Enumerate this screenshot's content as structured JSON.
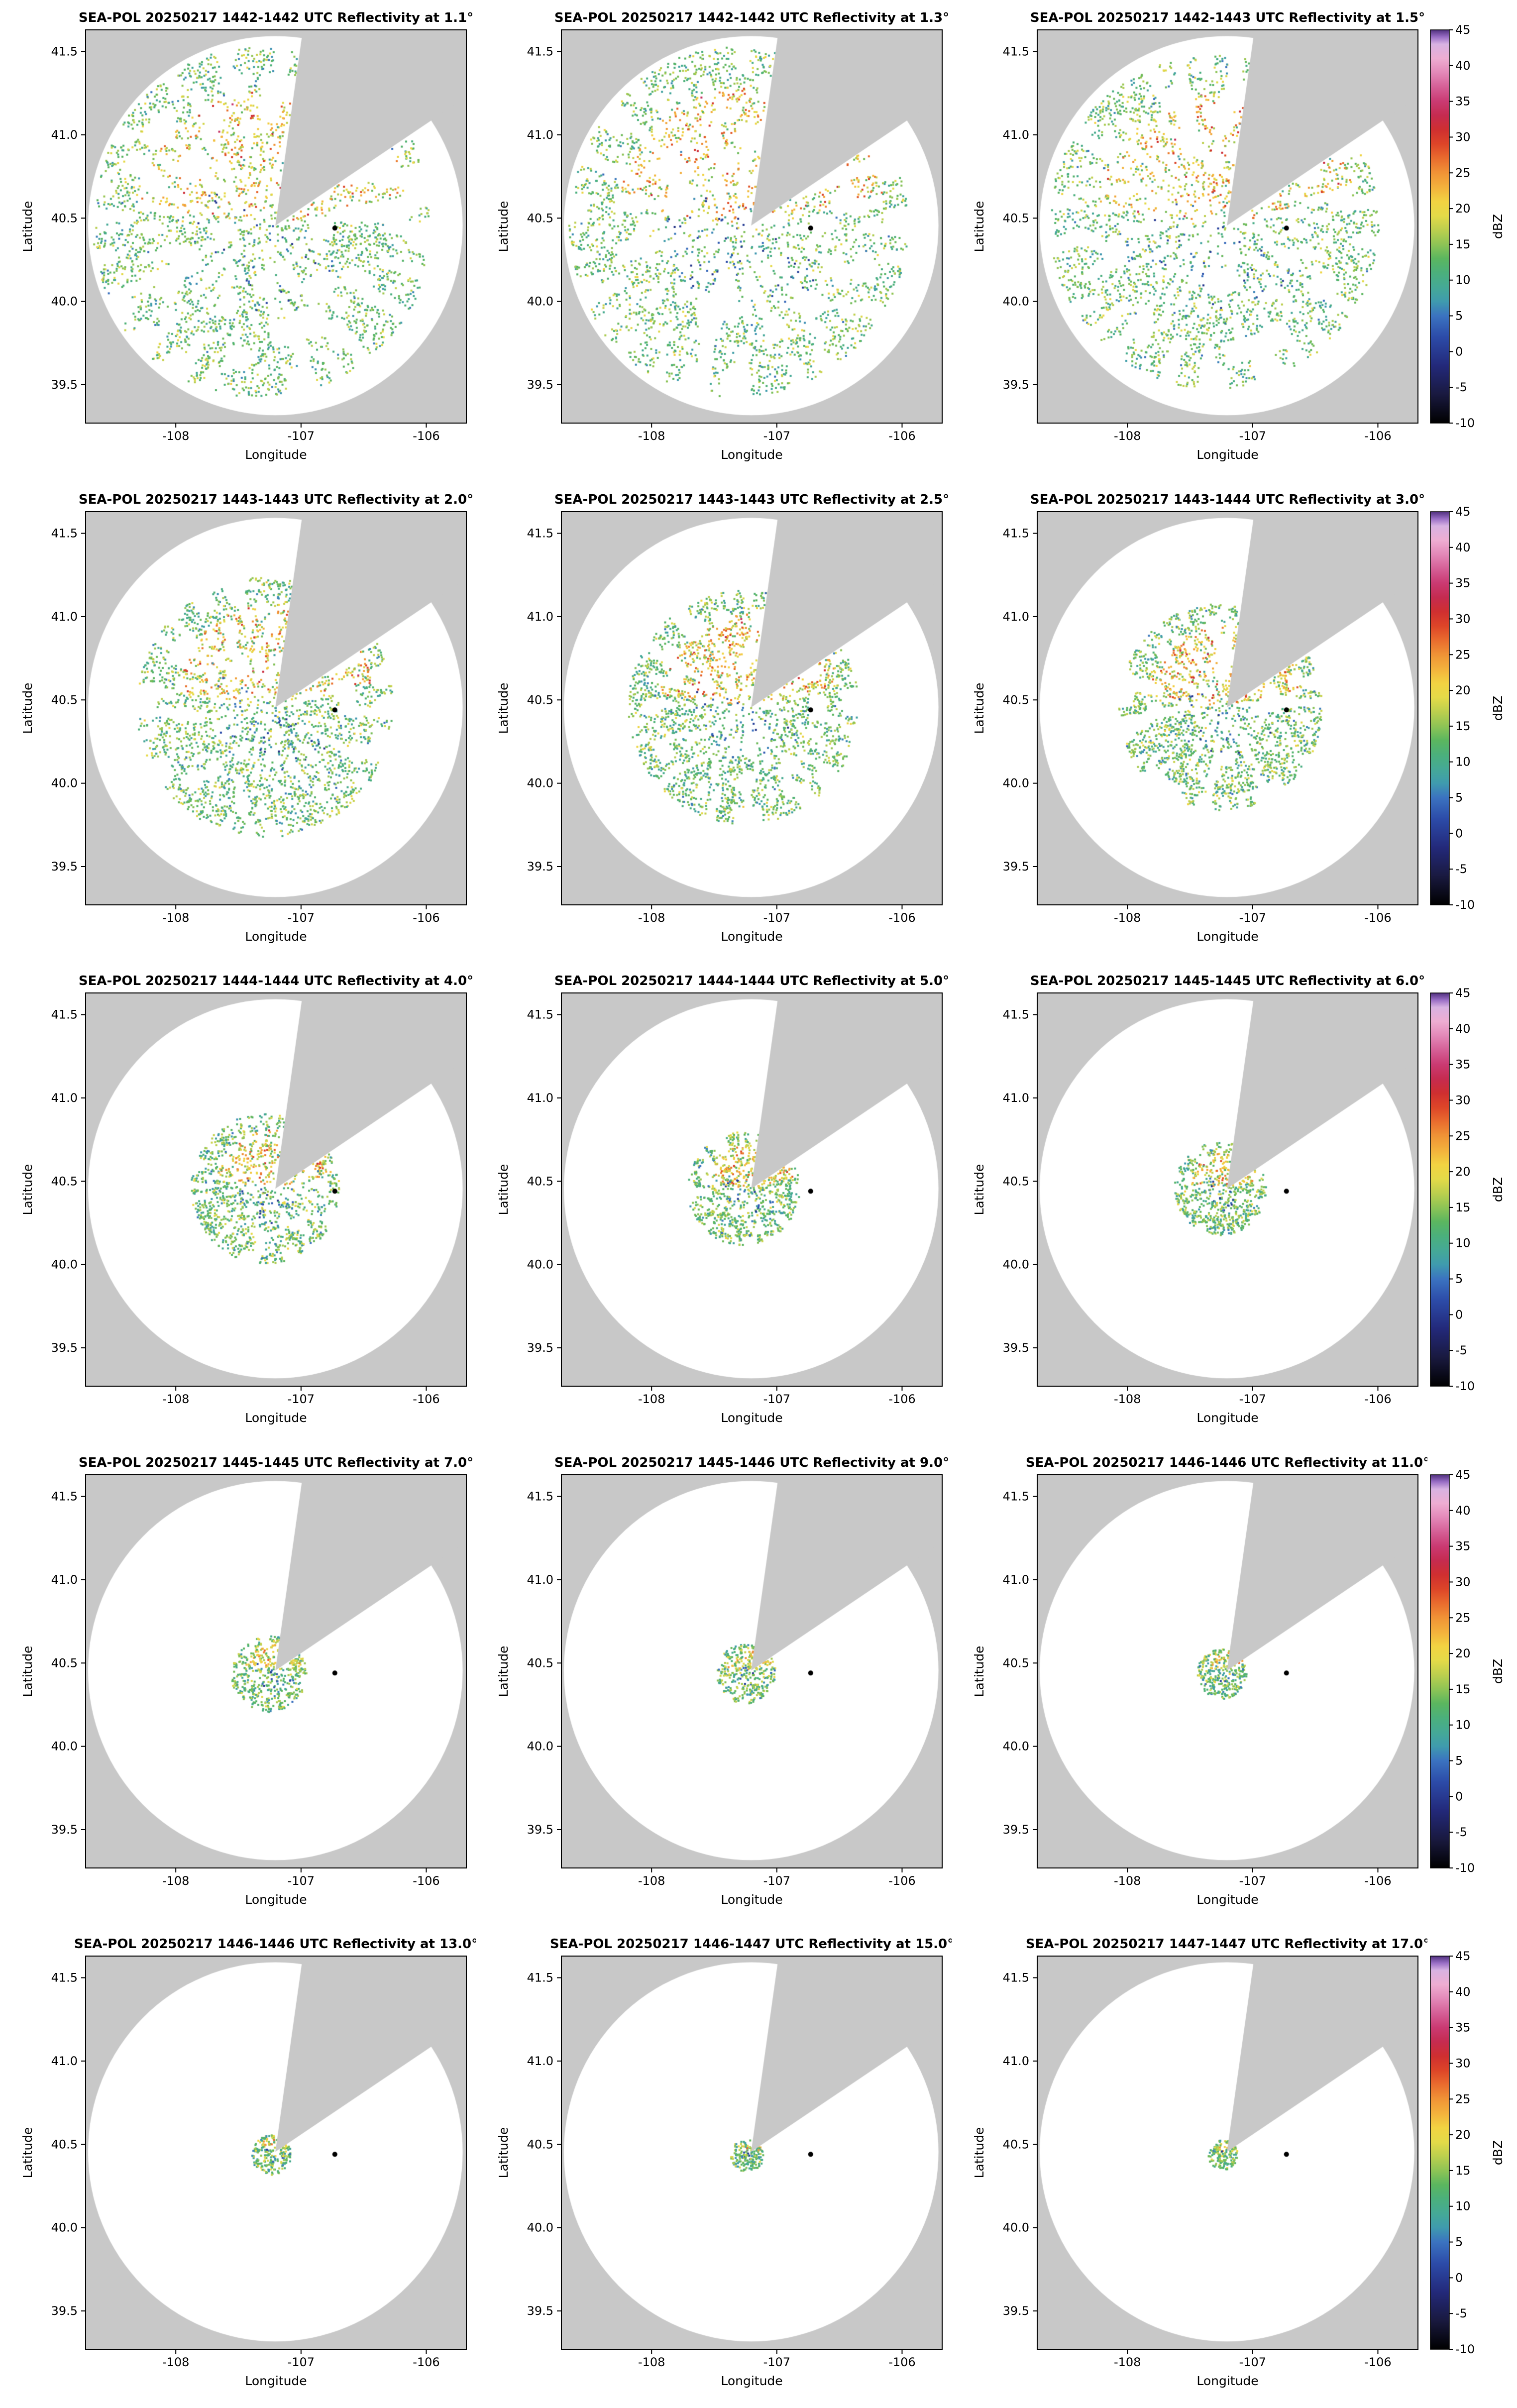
{
  "chart_data": {
    "type": "heatmap",
    "instrument": "SEA-POL",
    "date": "20250217",
    "grid": {
      "rows": 5,
      "cols": 3
    },
    "axes": {
      "xlabel": "Longitude",
      "ylabel": "Latitude",
      "xticks": [
        -108,
        -107,
        -106
      ],
      "xtick_labels": [
        "-108",
        "-107",
        "-106"
      ],
      "yticks": [
        39.5,
        40.0,
        40.5,
        41.0,
        41.5
      ],
      "ytick_labels": [
        "39.5",
        "40.0",
        "40.5",
        "41.0",
        "41.5"
      ],
      "xlim": [
        -108.72,
        -105.68
      ],
      "ylim": [
        39.27,
        41.63
      ]
    },
    "radar": {
      "center_lon": -107.205,
      "center_lat": 40.455,
      "range_deg_lat": 1.138,
      "blocked_sector_deg": [
        8,
        57
      ],
      "marker_lon": -106.73,
      "marker_lat": 40.44,
      "background_gray": "#c8c8c8",
      "coverage_color": "#ffffff"
    },
    "colorbar": {
      "label": "dBZ",
      "min": -10,
      "max": 45,
      "tick_values": [
        45,
        40,
        35,
        30,
        25,
        20,
        15,
        10,
        5,
        0,
        -5,
        -10
      ],
      "tick_labels": [
        "45",
        "40",
        "35",
        "30",
        "25",
        "20",
        "15",
        "10",
        "5",
        "0",
        "-5",
        "-10"
      ],
      "stops": [
        [
          -10,
          "#000000"
        ],
        [
          -6,
          "#19193f"
        ],
        [
          -2,
          "#23297a"
        ],
        [
          2,
          "#2c4ba8"
        ],
        [
          5,
          "#3b73c0"
        ],
        [
          7,
          "#3f9bae"
        ],
        [
          9,
          "#45a996"
        ],
        [
          11,
          "#4bb07c"
        ],
        [
          13,
          "#5bb65f"
        ],
        [
          15,
          "#8ec455"
        ],
        [
          17,
          "#bccf4e"
        ],
        [
          19,
          "#e4da48"
        ],
        [
          21,
          "#f2d342"
        ],
        [
          23,
          "#f3b13c"
        ],
        [
          25,
          "#f09336"
        ],
        [
          27,
          "#e96c2e"
        ],
        [
          29,
          "#dd4528"
        ],
        [
          31,
          "#cf2f30"
        ],
        [
          33,
          "#c52b50"
        ],
        [
          35,
          "#ca3a72"
        ],
        [
          37,
          "#d55f96"
        ],
        [
          39,
          "#e388b8"
        ],
        [
          41,
          "#eeadd2"
        ],
        [
          43,
          "#d8b2e2"
        ],
        [
          44,
          "#9a6fc6"
        ],
        [
          45,
          "#50307f"
        ]
      ]
    },
    "panels": [
      {
        "title": "SEA-POL 20250217 1442-1442 UTC Reflectivity at 1.1°",
        "elevation_deg": 1.1,
        "sweep_time_utc": "1442-1442",
        "echo": {
          "seed": 11,
          "extent_deg": 1.05,
          "n_points": 2600,
          "center_offset": [
            -0.12,
            0.02
          ],
          "intensity_boost": 1.0
        }
      },
      {
        "title": "SEA-POL 20250217 1442-1442 UTC Reflectivity at 1.3°",
        "elevation_deg": 1.3,
        "sweep_time_utc": "1442-1442",
        "echo": {
          "seed": 13,
          "extent_deg": 1.05,
          "n_points": 2500,
          "center_offset": [
            -0.12,
            0.02
          ],
          "intensity_boost": 1.0
        }
      },
      {
        "title": "SEA-POL 20250217 1442-1443 UTC Reflectivity at 1.5°",
        "elevation_deg": 1.5,
        "sweep_time_utc": "1442-1443",
        "echo": {
          "seed": 15,
          "extent_deg": 1.0,
          "n_points": 2500,
          "center_offset": [
            -0.1,
            0.02
          ],
          "intensity_boost": 1.0
        }
      },
      {
        "title": "SEA-POL 20250217 1443-1443 UTC Reflectivity at 2.0°",
        "elevation_deg": 2.0,
        "sweep_time_utc": "1443-1443",
        "echo": {
          "seed": 20,
          "extent_deg": 0.78,
          "n_points": 2300,
          "center_offset": [
            -0.08,
            0.0
          ],
          "intensity_boost": 1.0
        }
      },
      {
        "title": "SEA-POL 20250217 1443-1443 UTC Reflectivity at 2.5°",
        "elevation_deg": 2.5,
        "sweep_time_utc": "1443-1443",
        "echo": {
          "seed": 25,
          "extent_deg": 0.7,
          "n_points": 2100,
          "center_offset": [
            -0.06,
            0.0
          ],
          "intensity_boost": 1.0
        }
      },
      {
        "title": "SEA-POL 20250217 1443-1444 UTC Reflectivity at 3.0°",
        "elevation_deg": 3.0,
        "sweep_time_utc": "1443-1444",
        "echo": {
          "seed": 30,
          "extent_deg": 0.62,
          "n_points": 1800,
          "center_offset": [
            -0.05,
            0.0
          ],
          "intensity_boost": 1.0
        }
      },
      {
        "title": "SEA-POL 20250217 1444-1444 UTC Reflectivity at 4.0°",
        "elevation_deg": 4.0,
        "sweep_time_utc": "1444-1444",
        "echo": {
          "seed": 40,
          "extent_deg": 0.45,
          "n_points": 1200,
          "center_offset": [
            -0.08,
            0.0
          ],
          "intensity_boost": 0.9
        }
      },
      {
        "title": "SEA-POL 20250217 1444-1444 UTC Reflectivity at 5.0°",
        "elevation_deg": 5.0,
        "sweep_time_utc": "1444-1444",
        "echo": {
          "seed": 50,
          "extent_deg": 0.34,
          "n_points": 900,
          "center_offset": [
            -0.06,
            0.0
          ],
          "intensity_boost": 0.9
        }
      },
      {
        "title": "SEA-POL 20250217 1445-1445 UTC Reflectivity at 6.0°",
        "elevation_deg": 6.0,
        "sweep_time_utc": "1445-1445",
        "echo": {
          "seed": 60,
          "extent_deg": 0.28,
          "n_points": 700,
          "center_offset": [
            -0.05,
            0.0
          ],
          "intensity_boost": 0.9
        }
      },
      {
        "title": "SEA-POL 20250217 1445-1445 UTC Reflectivity at 7.0°",
        "elevation_deg": 7.0,
        "sweep_time_utc": "1445-1445",
        "echo": {
          "seed": 70,
          "extent_deg": 0.23,
          "n_points": 500,
          "center_offset": [
            -0.05,
            -0.02
          ],
          "intensity_boost": 0.7
        }
      },
      {
        "title": "SEA-POL 20250217 1445-1446 UTC Reflectivity at 9.0°",
        "elevation_deg": 9.0,
        "sweep_time_utc": "1445-1446",
        "echo": {
          "seed": 90,
          "extent_deg": 0.18,
          "n_points": 380,
          "center_offset": [
            -0.04,
            -0.02
          ],
          "intensity_boost": 0.7
        }
      },
      {
        "title": "SEA-POL 20250217 1446-1446 UTC Reflectivity at 11.0°",
        "elevation_deg": 11.0,
        "sweep_time_utc": "1446-1446",
        "echo": {
          "seed": 110,
          "extent_deg": 0.15,
          "n_points": 320,
          "center_offset": [
            -0.04,
            -0.02
          ],
          "intensity_boost": 0.7
        }
      },
      {
        "title": "SEA-POL 20250217 1446-1446 UTC Reflectivity at 13.0°",
        "elevation_deg": 13.0,
        "sweep_time_utc": "1446-1446",
        "echo": {
          "seed": 130,
          "extent_deg": 0.12,
          "n_points": 240,
          "center_offset": [
            -0.03,
            -0.02
          ],
          "intensity_boost": 0.6
        }
      },
      {
        "title": "SEA-POL 20250217 1446-1447 UTC Reflectivity at 15.0°",
        "elevation_deg": 15.0,
        "sweep_time_utc": "1446-1447",
        "echo": {
          "seed": 150,
          "extent_deg": 0.1,
          "n_points": 200,
          "center_offset": [
            -0.03,
            -0.02
          ],
          "intensity_boost": 0.6
        }
      },
      {
        "title": "SEA-POL 20250217 1447-1447 UTC Reflectivity at 17.0°",
        "elevation_deg": 17.0,
        "sweep_time_utc": "1447-1447",
        "echo": {
          "seed": 170,
          "extent_deg": 0.09,
          "n_points": 170,
          "center_offset": [
            -0.03,
            -0.02
          ],
          "intensity_boost": 0.6
        }
      }
    ]
  }
}
